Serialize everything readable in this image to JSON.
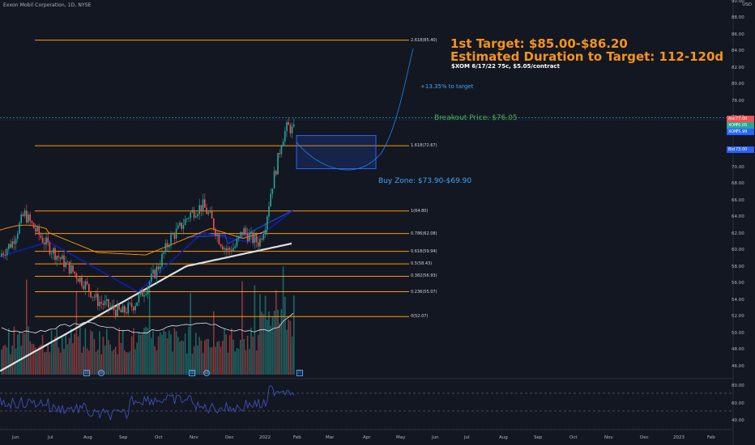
{
  "header": {
    "title": "Exxon Mobil Corporation, 1D, NYSE",
    "currency": "USD"
  },
  "annotations": {
    "target": "1st Target: $85.00-$86.20",
    "duration": "Estimated Duration to Target: 112-120d",
    "option": "$XOM 6/17/22 75c, $5.05/contract",
    "pct_to_target": "+13.35% to target",
    "breakout": "Breakout Price: $76.05",
    "buy_zone": "Buy Zone: $73.90-$69.90"
  },
  "fib_levels": [
    {
      "label": "2.618(85.40)",
      "value": 85.4
    },
    {
      "label": "1.618(72.67)",
      "value": 72.67
    },
    {
      "label": "1(64.80)",
      "value": 64.8
    },
    {
      "label": "0.786(62.08)",
      "value": 62.08
    },
    {
      "label": "0.618(59.94)",
      "value": 59.94
    },
    {
      "label": "0.5(58.43)",
      "value": 58.43
    },
    {
      "label": "0.382(56.93)",
      "value": 56.93
    },
    {
      "label": "0.236(55.07)",
      "value": 55.07
    },
    {
      "label": "0(52.07)",
      "value": 52.07
    }
  ],
  "price_axis": [
    "90.00",
    "88.00",
    "86.00",
    "84.00",
    "82.00",
    "80.00",
    "78.00",
    "76.00",
    "74.00",
    "72.00",
    "70.00",
    "68.00",
    "66.00",
    "64.00",
    "62.00",
    "60.00",
    "58.00",
    "56.00",
    "54.00",
    "52.00",
    "50.00",
    "48.00",
    "46.00"
  ],
  "rsi_axis": [
    "80.00",
    "60.00",
    "40.00"
  ],
  "time_axis": [
    "Jun",
    "Jul",
    "Aug",
    "Sep",
    "Oct",
    "Nov",
    "Dec",
    "2022",
    "Feb",
    "Mar",
    "Apr",
    "May",
    "Jun",
    "Jul",
    "Aug",
    "Sep",
    "Oct",
    "Nov",
    "Dec",
    "2023",
    "Feb"
  ],
  "price_badges": [
    {
      "key": "Ask",
      "value": "77.00",
      "color": "#ef5350"
    },
    {
      "key": "XOM",
      "value": "76.05",
      "color": "#26a69a"
    },
    {
      "key": "XOM",
      "value": "75.99",
      "color": "#2962ff"
    },
    {
      "key": "Bid",
      "value": "73.00",
      "color": "#2962ff"
    }
  ],
  "event_markers": [
    "D",
    "D",
    "D",
    "D",
    "D"
  ],
  "colors": {
    "background": "#131722",
    "fib_line": "#ff9800",
    "ma_long": "#e0e0e0",
    "ma_mid": "#0d1fb0",
    "ma_short": "#ff9800",
    "candle_up": "#26a69a",
    "candle_down": "#ef5350",
    "buy_zone": "#2962ff",
    "rsi_line": "#3f51b5"
  }
}
